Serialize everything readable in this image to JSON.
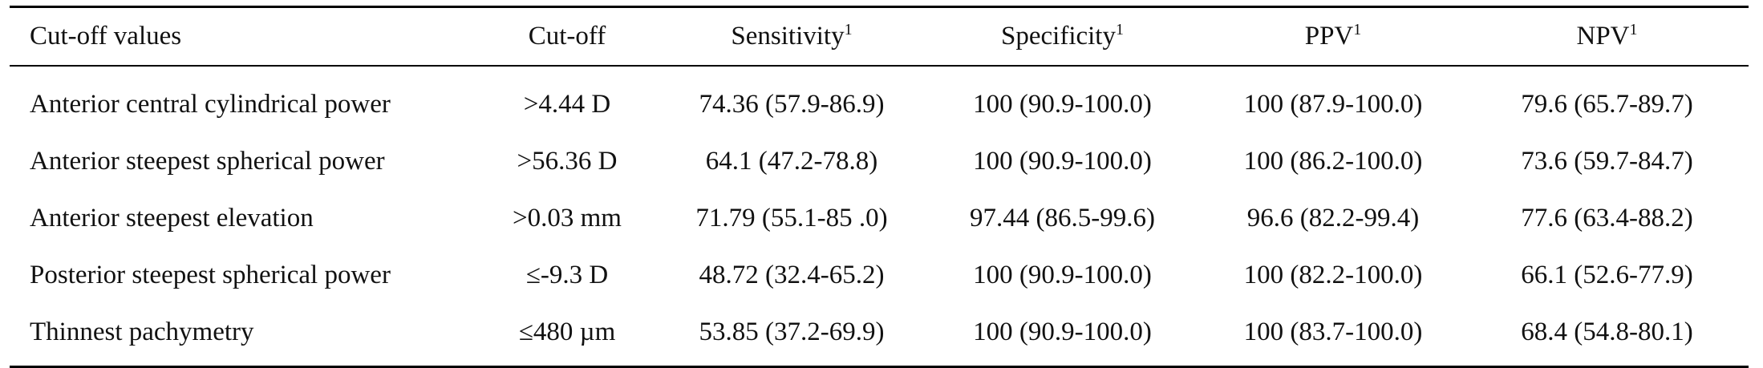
{
  "table": {
    "headers": [
      {
        "label": "Cut-off values",
        "sup": ""
      },
      {
        "label": "Cut-off",
        "sup": ""
      },
      {
        "label": "Sensitivity",
        "sup": "1"
      },
      {
        "label": "Specificity",
        "sup": "1"
      },
      {
        "label": "PPV",
        "sup": "1"
      },
      {
        "label": "NPV",
        "sup": "1"
      }
    ],
    "rows": [
      [
        "Anterior central cylindrical power",
        ">4.44 D",
        "74.36 (57.9-86.9)",
        "100 (90.9-100.0)",
        "100 (87.9-100.0)",
        "79.6 (65.7-89.7)"
      ],
      [
        "Anterior steepest spherical power",
        ">56.36 D",
        "64.1 (47.2-78.8)",
        "100 (90.9-100.0)",
        "100 (86.2-100.0)",
        "73.6 (59.7-84.7)"
      ],
      [
        "Anterior steepest elevation",
        ">0.03 mm",
        "71.79 (55.1-85 .0)",
        "97.44 (86.5-99.6)",
        "96.6 (82.2-99.4)",
        "77.6 (63.4-88.2)"
      ],
      [
        "Posterior steepest spherical power",
        "≤-9.3 D",
        "48.72 (32.4-65.2)",
        "100 (90.9-100.0)",
        "100 (82.2-100.0)",
        "66.1 (52.6-77.9)"
      ],
      [
        "Thinnest pachymetry",
        "≤480 µm",
        "53.85 (37.2-69.9)",
        "100 (90.9-100.0)",
        "100 (83.7-100.0)",
        "68.4 (54.8-80.1)"
      ]
    ]
  }
}
